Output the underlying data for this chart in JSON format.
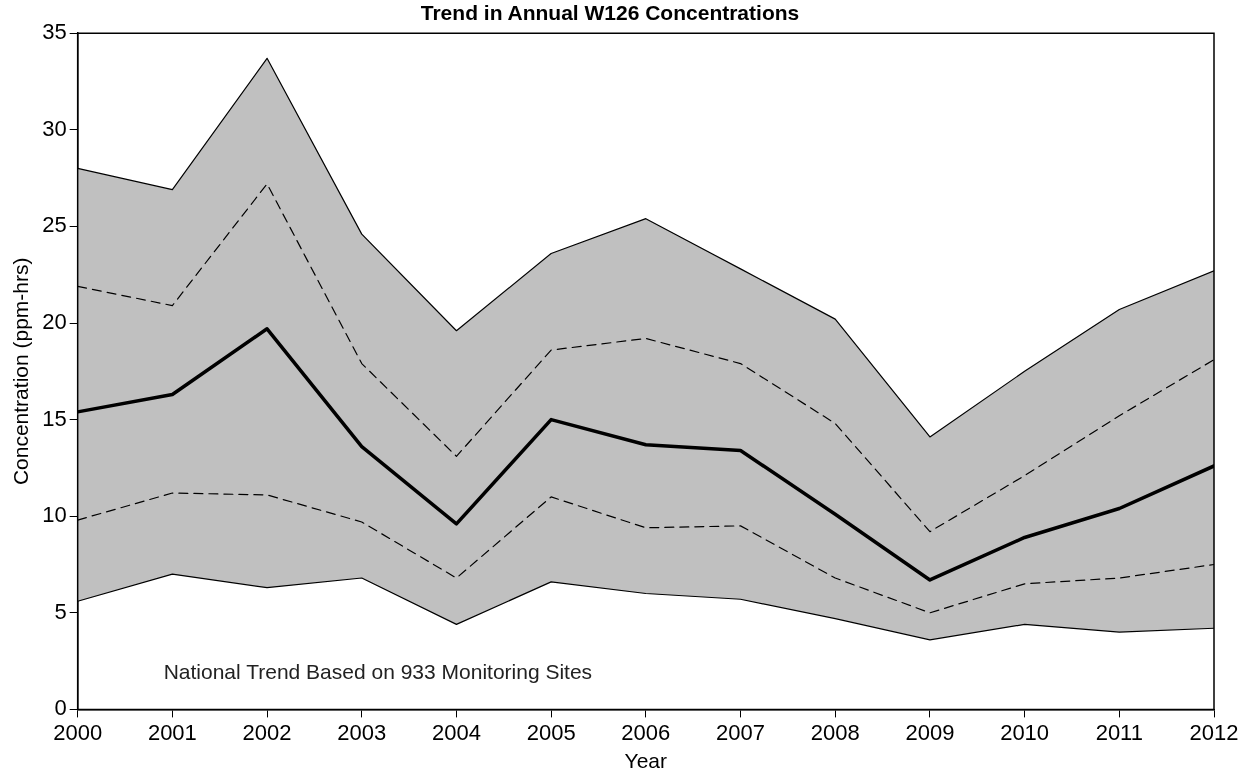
{
  "chart_data": {
    "type": "line",
    "title": "Trend in Annual W126 Concentrations",
    "xlabel": "Year",
    "ylabel": "Concentration (ppm-hrs)",
    "x": [
      2000,
      2001,
      2002,
      2003,
      2004,
      2005,
      2006,
      2007,
      2008,
      2009,
      2010,
      2011,
      2012
    ],
    "xlim": [
      2000,
      2012
    ],
    "xticks": [
      2000,
      2001,
      2002,
      2003,
      2004,
      2005,
      2006,
      2007,
      2008,
      2009,
      2010,
      2011,
      2012
    ],
    "ylim": [
      0,
      35
    ],
    "yticks": [
      0,
      5,
      10,
      15,
      20,
      25,
      30,
      35
    ],
    "grid": false,
    "legend": false,
    "marker": "none",
    "series": [
      {
        "color": "#000000",
        "line_style": "solid",
        "values": [
          15.4,
          16.3,
          19.7,
          13.6,
          9.6,
          15.0,
          13.7,
          13.4,
          10.1,
          6.7,
          8.9,
          10.4,
          12.6
        ],
        "lower": [
          5.6,
          7.0,
          6.3,
          6.8,
          4.4,
          6.6,
          6.0,
          5.7,
          4.7,
          3.6,
          4.4,
          4.0,
          4.2
        ],
        "upper": [
          28.0,
          26.9,
          33.7,
          24.6,
          19.6,
          23.6,
          25.4,
          22.8,
          20.2,
          14.1,
          17.5,
          20.7,
          22.7
        ]
      },
      {
        "color": "#000000",
        "line_style": "dashed",
        "values": [
          21.9,
          20.9,
          27.2,
          17.9,
          13.1,
          18.6,
          19.2,
          17.9,
          14.8,
          9.2,
          12.1,
          15.2,
          18.1
        ]
      },
      {
        "color": "#000000",
        "line_style": "dashed",
        "values": [
          9.8,
          11.2,
          11.1,
          9.7,
          6.8,
          11.0,
          9.4,
          9.5,
          6.8,
          5.0,
          6.5,
          6.8,
          7.5
        ]
      },
      {
        "color": "#000000",
        "line_style": "solid",
        "values": [
          28.0,
          26.9,
          33.7,
          24.6,
          19.6,
          23.6,
          25.4,
          22.8,
          20.2,
          14.1,
          17.5,
          20.7,
          22.7
        ]
      },
      {
        "color": "#000000",
        "line_style": "solid",
        "values": [
          5.6,
          7.0,
          6.3,
          6.8,
          4.4,
          6.6,
          6.0,
          5.7,
          4.7,
          3.6,
          4.4,
          4.0,
          4.2
        ]
      }
    ],
    "annotations": [
      "National Trend Based on 933 Monitoring Sites"
    ]
  }
}
